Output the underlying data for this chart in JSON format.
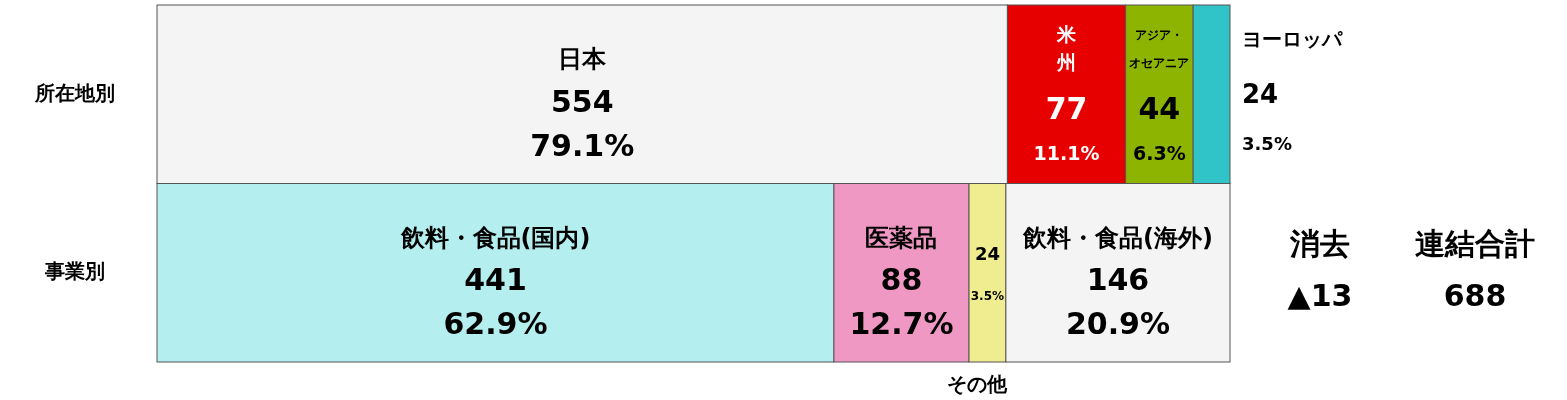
{
  "chart_data": {
    "type": "bar",
    "orientation": "horizontal",
    "stacked": true,
    "categories": [
      "所在地別",
      "事業別"
    ],
    "series": [
      {
        "name": "日本",
        "color": "#f4f4f4",
        "values": [
          554,
          null
        ],
        "value_labels": [
          "554 79.1%",
          null
        ]
      },
      {
        "name": "米州",
        "color": "#e60000",
        "values": [
          77,
          null
        ],
        "value_labels": [
          "77 11.1%",
          null
        ]
      },
      {
        "name": "アジア・オセアニア",
        "color": "#8cb400",
        "values": [
          44,
          null
        ],
        "value_labels": [
          "44 6.3%",
          null
        ]
      },
      {
        "name": "ヨーロッパ",
        "color": "#30c4c8",
        "values": [
          24,
          null
        ],
        "value_labels": [
          "24 3.5%",
          null
        ]
      },
      {
        "name": "飲料・食品(国内)",
        "color": "#b4eeee",
        "values": [
          null,
          441
        ],
        "value_labels": [
          null,
          "441 62.9%"
        ]
      },
      {
        "name": "医薬品",
        "color": "#f098c4",
        "values": [
          null,
          88
        ],
        "value_labels": [
          null,
          "88 12.7%"
        ]
      },
      {
        "name": "その他",
        "color": "#f0ec90",
        "values": [
          null,
          24
        ],
        "value_labels": [
          null,
          "24 3.5%"
        ]
      },
      {
        "name": "飲料・食品(海外)",
        "color": "#f4f4f4",
        "values": [
          null,
          146
        ],
        "value_labels": [
          null,
          "146 20.9%"
        ]
      }
    ],
    "annotations": [
      "消去 ▲13",
      "連結合計 688"
    ]
  }
}
